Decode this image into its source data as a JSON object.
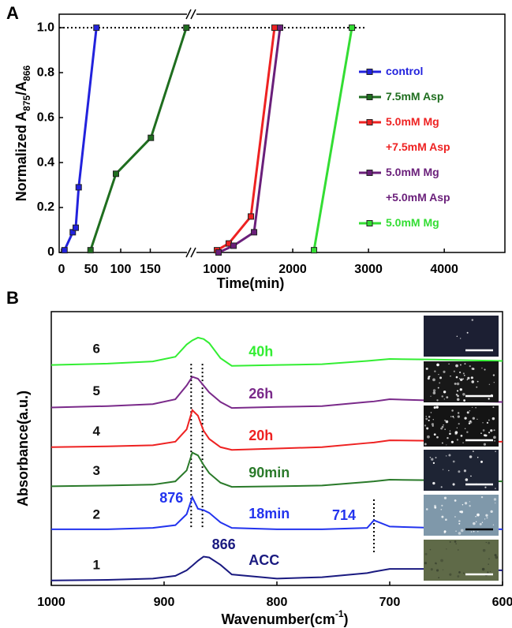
{
  "chart_data": [
    {
      "type": "line",
      "panel": "A",
      "ylabel": [
        "Normalized A",
        "875",
        "/A",
        "866"
      ],
      "xlabel": "Time(min)",
      "xsegments": [
        {
          "xlim": [
            -4,
            220
          ],
          "xticks": [
            0,
            50,
            100,
            150
          ]
        },
        {
          "xlim": [
            667,
            4800
          ],
          "xticks": [
            1000,
            2000,
            3000,
            4000
          ]
        }
      ],
      "ylim": [
        0,
        1.06
      ],
      "yticks": [
        0,
        0.2,
        0.4,
        0.6,
        0.8,
        {
          "value": 1,
          "label": "1.0"
        }
      ],
      "hline": 1,
      "series": [
        {
          "name": "control",
          "color": "#2222dd",
          "x": [
            5,
            19,
            24,
            29,
            59
          ],
          "values": [
            0.01,
            0.09,
            0.11,
            0.29,
            1.0
          ]
        },
        {
          "name": "7.5mM Asp",
          "color": "#1f6e1f",
          "x": [
            49,
            92,
            151,
            211
          ],
          "values": [
            0.01,
            0.35,
            0.51,
            1.0
          ]
        },
        {
          "name": "5.0mM Mg +7.5mM Asp",
          "color": "#ee2222",
          "x": [
            1000,
            1156,
            1448,
            1760
          ],
          "values": [
            0.01,
            0.04,
            0.16,
            1.0
          ]
        },
        {
          "name": "5.0mM Mg +5.0mM Asp",
          "color": "#6a1f7a",
          "x": [
            1021,
            1219,
            1490,
            1833
          ],
          "values": [
            0.0,
            0.03,
            0.09,
            1.0
          ]
        },
        {
          "name": "5.0mM Mg",
          "color": "#33dd33",
          "x": [
            2281,
            2781
          ],
          "values": [
            0.01,
            1.0
          ]
        }
      ]
    },
    {
      "type": "line",
      "panel": "B",
      "ylabel": "Absorbance(a.u.)",
      "xlabel": [
        "Wavenumber(cm",
        "-1",
        ")"
      ],
      "xlim": [
        1000,
        600
      ],
      "xticks": [
        1000,
        900,
        800,
        700,
        600
      ],
      "ylim": [
        0,
        10
      ],
      "x": [
        1000,
        950,
        910,
        890,
        880,
        875,
        870,
        865,
        860,
        850,
        840,
        800,
        760,
        720,
        714,
        700,
        660,
        600
      ],
      "series": [
        {
          "curve": "6",
          "name": "40h",
          "color": "#33ee33",
          "values": [
            8.05,
            8.1,
            8.18,
            8.35,
            8.8,
            8.95,
            9.05,
            9.0,
            8.85,
            8.3,
            8.02,
            8.05,
            8.08,
            8.2,
            8.22,
            8.27,
            8.25,
            8.2
          ]
        },
        {
          "curve": "5",
          "name": "26h",
          "color": "#7a2a8a",
          "values": [
            6.5,
            6.55,
            6.62,
            6.8,
            7.3,
            7.62,
            7.55,
            7.3,
            7.05,
            6.7,
            6.48,
            6.52,
            6.55,
            6.7,
            6.72,
            6.8,
            6.75,
            6.7
          ]
        },
        {
          "curve": "4",
          "name": "20h",
          "color": "#ee2222",
          "values": [
            5.05,
            5.08,
            5.12,
            5.25,
            5.7,
            6.4,
            6.2,
            5.65,
            5.35,
            5.05,
            4.95,
            5.0,
            5.05,
            5.2,
            5.22,
            5.3,
            5.28,
            5.25
          ]
        },
        {
          "curve": "3",
          "name": "90min",
          "color": "#2a7a2a",
          "values": [
            3.62,
            3.65,
            3.68,
            3.8,
            4.2,
            4.85,
            4.75,
            4.4,
            4.1,
            3.75,
            3.6,
            3.62,
            3.65,
            3.78,
            3.8,
            3.86,
            3.84,
            3.8
          ]
        },
        {
          "curve": "2",
          "name": "18min",
          "color": "#2233ee",
          "values": [
            2.05,
            2.05,
            2.1,
            2.2,
            2.6,
            3.22,
            2.8,
            2.75,
            2.65,
            2.3,
            2.1,
            2.05,
            2.05,
            2.1,
            2.38,
            2.15,
            2.1,
            2.05
          ]
        },
        {
          "curve": "1",
          "name": "ACC",
          "color": "#1a1a80",
          "values": [
            0.18,
            0.2,
            0.25,
            0.35,
            0.55,
            0.72,
            0.9,
            1.05,
            1.02,
            0.75,
            0.4,
            0.25,
            0.3,
            0.45,
            0.5,
            0.6,
            0.6,
            0.55
          ]
        }
      ],
      "vlines": [
        {
          "value": 876,
          "label": "876",
          "color": "#2233ee",
          "y": [
            2.13,
            8.18
          ]
        },
        {
          "value": 866,
          "label": "866",
          "color": "#1a1a80",
          "y": [
            2.13,
            8.18
          ]
        },
        {
          "value": 714,
          "label": "714",
          "color": "#2233ee",
          "y": [
            1.21,
            3.17
          ]
        }
      ]
    }
  ]
}
